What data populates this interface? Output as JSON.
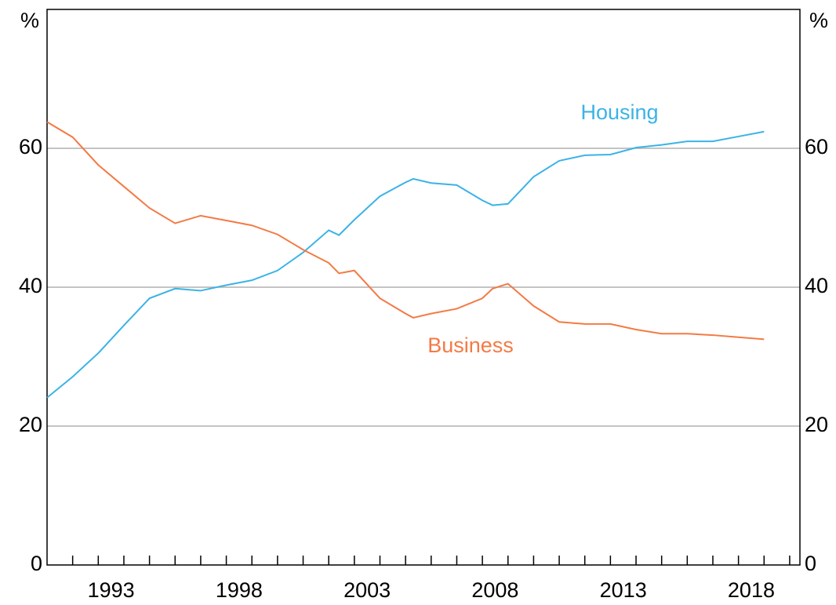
{
  "chart_data": {
    "type": "line",
    "y_unit": "%",
    "x": [
      1991,
      1992,
      1993,
      1994,
      1995,
      1996,
      1997,
      1998,
      1999,
      2000,
      2001,
      2002,
      2002.4,
      2003,
      2004,
      2005,
      2005.3,
      2006,
      2007,
      2008,
      2008.4,
      2009,
      2010,
      2011,
      2012,
      2013,
      2014,
      2015,
      2016,
      2017,
      2018,
      2019
    ],
    "series": [
      {
        "name": "Housing",
        "color": "#3bb3e6",
        "values": [
          24.1,
          27.1,
          30.5,
          34.5,
          38.4,
          39.8,
          39.5,
          40.3,
          41.0,
          42.4,
          45.0,
          48.2,
          47.5,
          49.7,
          53.1,
          55.1,
          55.6,
          55.0,
          54.7,
          52.5,
          51.8,
          52.0,
          55.9,
          58.2,
          59.0,
          59.1,
          60.1,
          60.5,
          61.0,
          61.0,
          61.7,
          62.4
        ]
      },
      {
        "name": "Business",
        "color": "#f47a45",
        "values": [
          63.8,
          61.6,
          57.6,
          54.5,
          51.4,
          49.2,
          50.3,
          49.6,
          48.9,
          47.6,
          45.4,
          43.5,
          42.0,
          42.4,
          38.4,
          36.2,
          35.6,
          36.2,
          36.9,
          38.4,
          39.8,
          40.5,
          37.3,
          35.0,
          34.7,
          34.7,
          33.9,
          33.3,
          33.3,
          33.1,
          32.8,
          32.5
        ]
      }
    ],
    "xlim": [
      1991,
      2020.4
    ],
    "xticks": [
      {
        "value": 1993.5,
        "label": "1993"
      },
      {
        "value": 1998.5,
        "label": "1998"
      },
      {
        "value": 2003.5,
        "label": "2003"
      },
      {
        "value": 2008.5,
        "label": "2008"
      },
      {
        "value": 2013.5,
        "label": "2013"
      },
      {
        "value": 2018.5,
        "label": "2018"
      }
    ],
    "xminor_ticks": [
      1992,
      1993,
      1994,
      1995,
      1996,
      1997,
      1998,
      1999,
      2000,
      2001,
      2002,
      2003,
      2004,
      2005,
      2006,
      2007,
      2008,
      2009,
      2010,
      2011,
      2012,
      2013,
      2014,
      2015,
      2016,
      2017,
      2018,
      2019,
      2020
    ],
    "ylim": [
      0,
      80
    ],
    "yticks": [
      0,
      20,
      40,
      60
    ],
    "y2lim": [
      0,
      80
    ],
    "y2ticks": [
      0,
      20,
      40,
      60
    ],
    "grid": true
  }
}
